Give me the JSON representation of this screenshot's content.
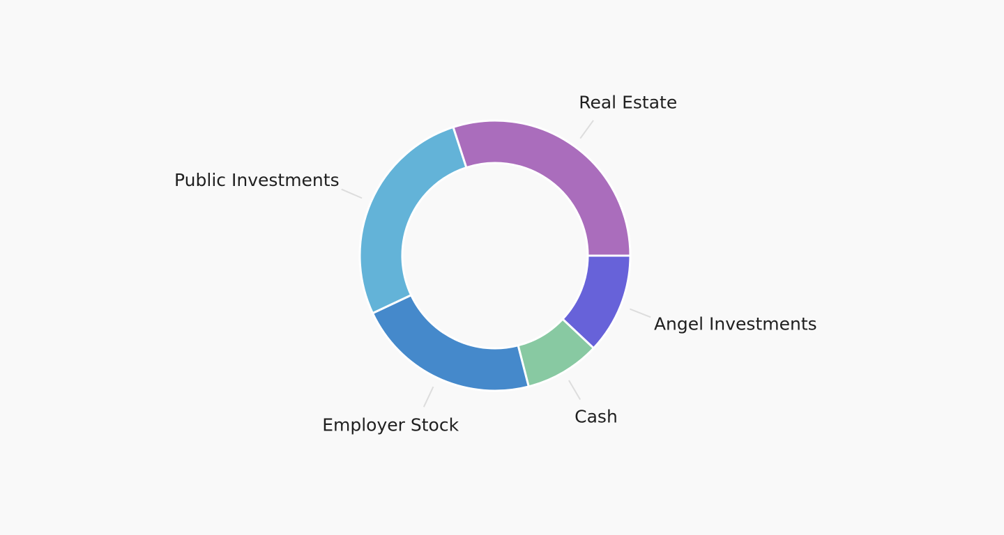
{
  "chart_data": {
    "type": "donut",
    "categories": [
      "Angel Investments",
      "Cash",
      "Employer Stock",
      "Public Investments",
      "Real Estate"
    ],
    "values": [
      12,
      9,
      22,
      27,
      30
    ],
    "colors": [
      "#6762d9",
      "#88c9a2",
      "#4589cb",
      "#63b3d8",
      "#aa6dbc"
    ]
  }
}
